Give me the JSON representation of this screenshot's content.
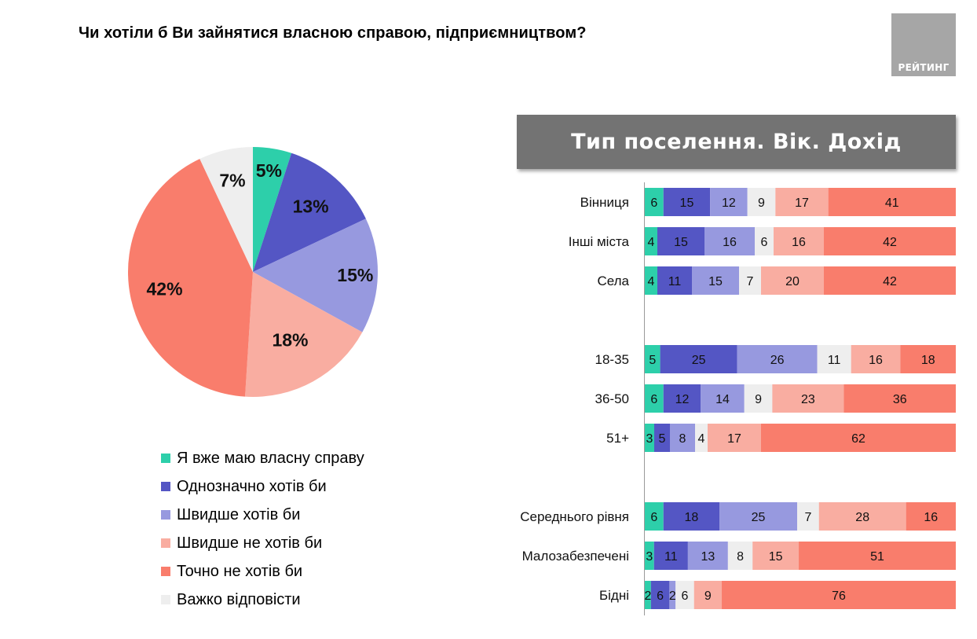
{
  "title": "Чи хотіли б Ви зайнятися власною справою, підприємництвом?",
  "logo": {
    "text": "РЕЙТИНГ"
  },
  "panel_title": "Тип поселення. Вік. Дохід",
  "chart_data": [
    {
      "type": "pie",
      "slices": [
        {
          "name": "Я вже маю власну справу",
          "value": 5,
          "label": "5%",
          "color": "#2dcfaa"
        },
        {
          "name": "Однозначно хотів би",
          "value": 13,
          "label": "13%",
          "color": "#5456c4"
        },
        {
          "name": "Швидше хотів би",
          "value": 15,
          "label": "15%",
          "color": "#9799df"
        },
        {
          "name": "Швидше не хотів би",
          "value": 18,
          "label": "18%",
          "color": "#f9ada1"
        },
        {
          "name": "Точно не хотів би",
          "value": 42,
          "label": "42%",
          "color": "#f97d6c"
        },
        {
          "name": "Важко відповісти",
          "value": 7,
          "label": "7%",
          "color": "#eeeeee"
        }
      ],
      "legend_position": "bottom"
    },
    {
      "type": "bar",
      "orientation": "horizontal",
      "stacked": true,
      "xlim": [
        0,
        100
      ],
      "series_names": [
        "Я вже маю власну справу",
        "Однозначно хотів би",
        "Швидше хотів би",
        "Важко відповісти",
        "Швидше не хотів би",
        "Точно не хотів би"
      ],
      "series_colors": [
        "#2dcfaa",
        "#5456c4",
        "#9799df",
        "#eeeeee",
        "#f9ada1",
        "#f97d6c"
      ],
      "groups": [
        {
          "rows": [
            {
              "category": "Вінниця",
              "values": [
                6,
                15,
                12,
                9,
                17,
                41
              ]
            },
            {
              "category": "Інші міста",
              "values": [
                4,
                15,
                16,
                6,
                16,
                42
              ]
            },
            {
              "category": "Села",
              "values": [
                4,
                11,
                15,
                7,
                20,
                42
              ]
            }
          ]
        },
        {
          "rows": [
            {
              "category": "18-35",
              "values": [
                5,
                25,
                26,
                11,
                16,
                18
              ]
            },
            {
              "category": "36-50",
              "values": [
                6,
                12,
                14,
                9,
                23,
                36
              ]
            },
            {
              "category": "51+",
              "values": [
                3,
                5,
                8,
                4,
                17,
                62
              ]
            }
          ]
        },
        {
          "rows": [
            {
              "category": "Середнього рівня",
              "values": [
                6,
                18,
                25,
                7,
                28,
                16
              ]
            },
            {
              "category": "Малозабезпечені",
              "values": [
                3,
                11,
                13,
                8,
                15,
                51
              ]
            },
            {
              "category": "Бідні",
              "values": [
                2,
                6,
                2,
                6,
                9,
                76
              ]
            }
          ]
        }
      ]
    }
  ]
}
